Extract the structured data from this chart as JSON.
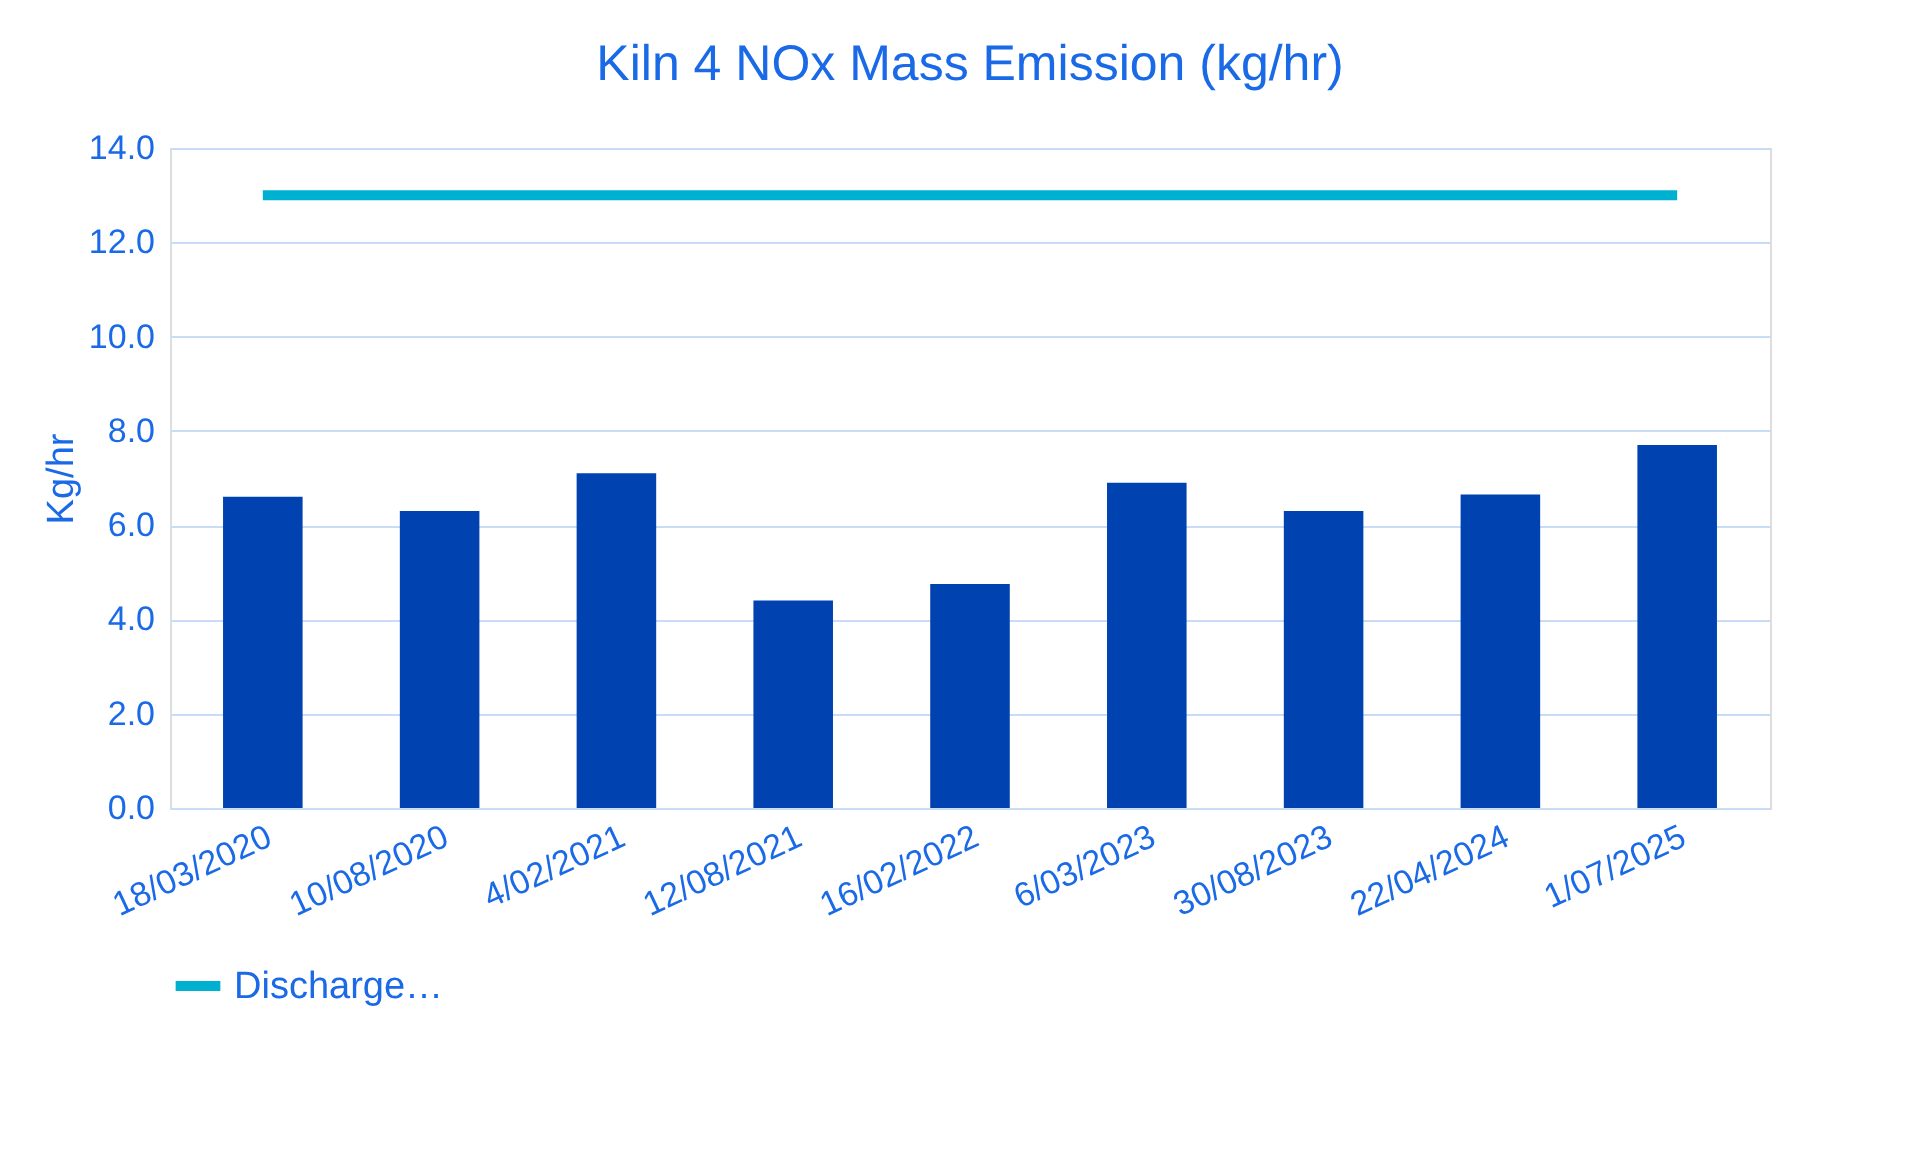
{
  "chart_data": {
    "type": "bar",
    "title": "Kiln 4 NOx Mass Emission (kg/hr)",
    "ylabel": "Kg/hr",
    "categories": [
      "18/03/2020",
      "10/08/2020",
      "4/02/2021",
      "12/08/2021",
      "16/02/2022",
      "6/03/2023",
      "30/08/2023",
      "22/04/2024",
      "1/07/2025"
    ],
    "series": [
      {
        "color": "#0043b0",
        "values": [
          6.6,
          6.3,
          7.1,
          4.4,
          4.75,
          6.9,
          6.3,
          6.65,
          7.7
        ]
      },
      {
        "name": "Discharge…",
        "type": "line",
        "color": "#00b0d0",
        "values": [
          13.0,
          13.0,
          13.0,
          13.0,
          13.0,
          13.0,
          13.0,
          13.0,
          13.0
        ]
      }
    ],
    "ylim": [
      0,
      14
    ],
    "yticks": [
      {
        "value": 0,
        "label": "0.0"
      },
      {
        "value": 2,
        "label": "2.0"
      },
      {
        "value": 4,
        "label": "4.0"
      },
      {
        "value": 6,
        "label": "6.0"
      },
      {
        "value": 8,
        "label": "8.0"
      },
      {
        "value": 10,
        "label": "10.0"
      },
      {
        "value": 12,
        "label": "12.0"
      },
      {
        "value": 14,
        "label": "14.0"
      }
    ],
    "grid": "y",
    "legend": "bottom"
  }
}
